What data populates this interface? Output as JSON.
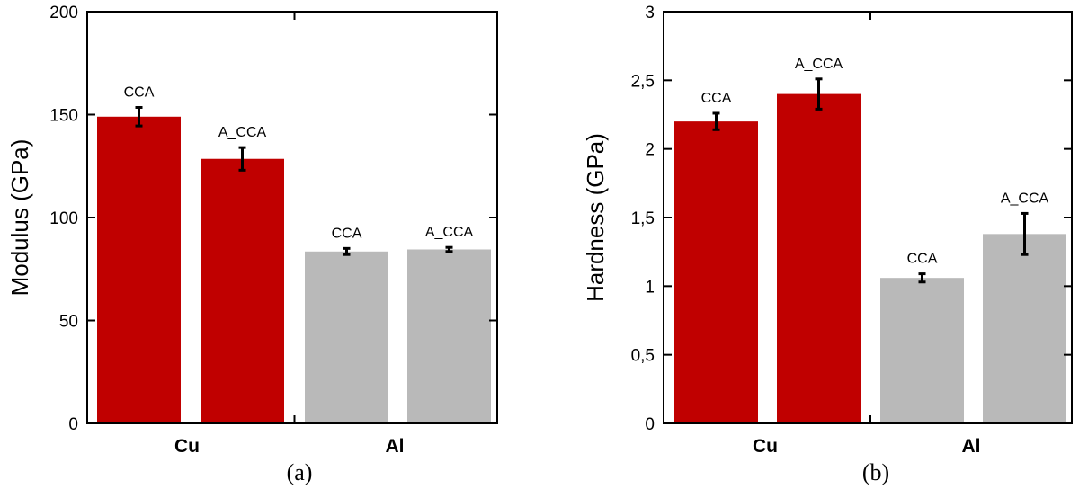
{
  "chart_data": [
    {
      "type": "bar",
      "panel_label": "(a)",
      "ylabel": "Modulus (GPa)",
      "ylim": [
        0,
        200
      ],
      "yticks": [
        0,
        50,
        100,
        150,
        200
      ],
      "ytick_labels": [
        "0",
        "50",
        "100",
        "150",
        "200"
      ],
      "categories": [
        "Cu",
        "Al"
      ],
      "bars": [
        {
          "group": "Cu",
          "label": "CCA",
          "value": 149,
          "error": 4.5,
          "color": "#c00000"
        },
        {
          "group": "Cu",
          "label": "A_CCA",
          "value": 128.5,
          "error": 5.5,
          "color": "#c00000"
        },
        {
          "group": "Al",
          "label": "CCA",
          "value": 83.5,
          "error": 1.5,
          "color": "#b9b9b9"
        },
        {
          "group": "Al",
          "label": "A_CCA",
          "value": 84.5,
          "error": 1,
          "color": "#b9b9b9"
        }
      ]
    },
    {
      "type": "bar",
      "panel_label": "(b)",
      "ylabel": "Hardness (GPa)",
      "ylim": [
        0,
        3
      ],
      "yticks": [
        0,
        0.5,
        1,
        1.5,
        2,
        2.5,
        3
      ],
      "ytick_labels": [
        "0",
        "0,5",
        "1",
        "1,5",
        "2",
        "2,5",
        "3"
      ],
      "categories": [
        "Cu",
        "Al"
      ],
      "bars": [
        {
          "group": "Cu",
          "label": "CCA",
          "value": 2.2,
          "error": 0.06,
          "color": "#c00000"
        },
        {
          "group": "Cu",
          "label": "A_CCA",
          "value": 2.4,
          "error": 0.11,
          "color": "#c00000"
        },
        {
          "group": "Al",
          "label": "CCA",
          "value": 1.06,
          "error": 0.03,
          "color": "#b9b9b9"
        },
        {
          "group": "Al",
          "label": "A_CCA",
          "value": 1.38,
          "error": 0.15,
          "color": "#b9b9b9"
        }
      ]
    }
  ]
}
